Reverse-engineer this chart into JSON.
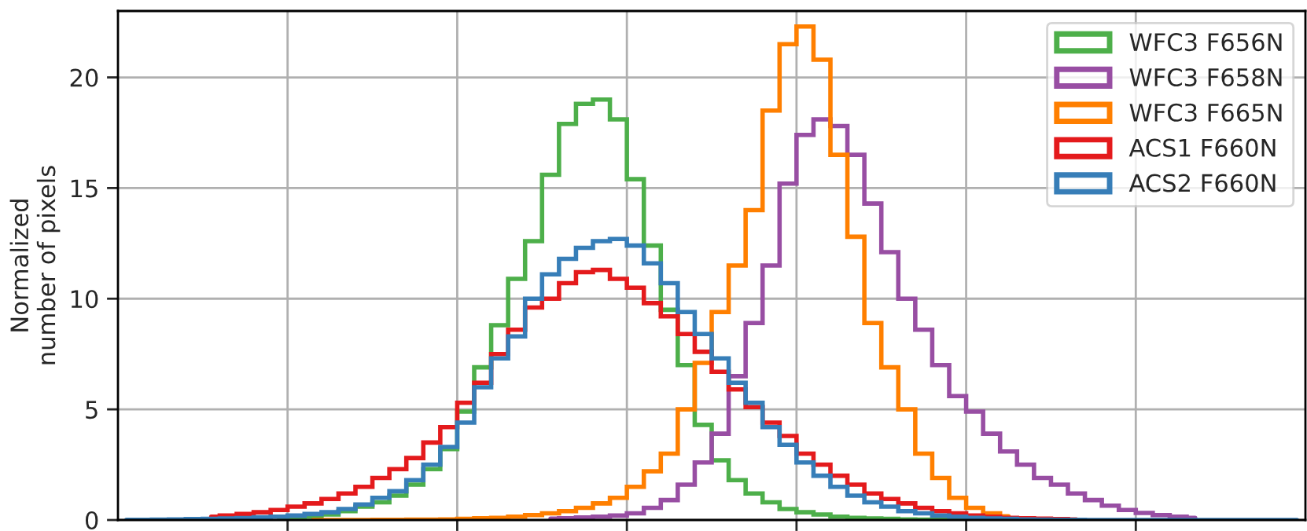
{
  "chart_data": {
    "type": "step",
    "ylabel": "Normalized\nnumber of pixels",
    "categories": [
      null,
      null,
      null,
      null,
      null,
      null,
      null,
      null,
      null,
      null,
      null,
      null,
      null,
      null,
      null,
      null,
      null,
      null,
      null,
      null,
      null,
      null,
      null,
      null,
      null,
      null,
      null,
      null,
      null,
      null,
      null,
      null,
      null,
      null,
      null,
      null,
      null,
      null,
      null,
      null,
      null,
      null,
      null,
      null,
      null,
      null,
      null,
      null,
      null,
      null,
      null,
      null,
      null,
      null,
      null,
      null,
      null,
      null,
      null,
      null,
      null,
      null,
      null,
      null,
      null,
      null,
      null,
      null,
      null,
      null
    ],
    "series": [
      {
        "name": "WFC3 F656N",
        "color": "#4daf4a",
        "values": [
          null,
          null,
          null,
          null,
          null,
          null,
          null,
          null,
          null,
          0.05,
          0.1,
          0.15,
          0.25,
          0.4,
          0.6,
          0.8,
          1.1,
          1.6,
          2.3,
          3.2,
          4.9,
          6.9,
          8.8,
          10.9,
          12.6,
          15.6,
          17.9,
          18.8,
          19.0,
          18.1,
          15.4,
          12.4,
          9.5,
          7.0,
          4.3,
          2.7,
          1.8,
          1.2,
          0.8,
          0.5,
          0.35,
          0.25,
          0.15,
          0.1,
          0.07,
          0.05,
          0.03,
          0.02,
          0.01,
          0.01,
          0,
          null,
          null,
          null,
          null,
          null,
          null,
          null,
          null,
          null,
          null,
          null,
          null,
          null,
          null,
          null,
          null,
          null,
          null,
          null
        ]
      },
      {
        "name": "WFC3 F658N",
        "color": "#984ea3",
        "values": [
          null,
          null,
          null,
          null,
          null,
          null,
          null,
          null,
          null,
          null,
          null,
          null,
          null,
          null,
          null,
          null,
          null,
          null,
          null,
          null,
          null,
          null,
          null,
          null,
          null,
          0.06,
          0.08,
          0.11,
          0.15,
          0.2,
          0.3,
          0.55,
          0.9,
          1.6,
          2.6,
          3.9,
          6.5,
          8.9,
          11.5,
          15.2,
          17.4,
          18.1,
          17.8,
          16.5,
          14.3,
          12.1,
          10.0,
          8.6,
          7.0,
          5.6,
          4.9,
          3.9,
          3.1,
          2.5,
          1.9,
          1.6,
          1.2,
          0.9,
          0.65,
          0.45,
          0.32,
          0.22,
          0.15,
          0.1,
          null,
          null,
          null,
          null,
          null,
          null
        ]
      },
      {
        "name": "WFC3 F665N",
        "color": "#ff7f00",
        "values": [
          null,
          null,
          null,
          null,
          null,
          null,
          null,
          null,
          null,
          null,
          null,
          0,
          0,
          0,
          0,
          0.01,
          0.01,
          0.02,
          0.02,
          0.03,
          0.05,
          0.08,
          0.1,
          0.15,
          0.22,
          0.3,
          0.4,
          0.55,
          0.75,
          1.0,
          1.5,
          2.2,
          3.0,
          5.0,
          7.1,
          9.4,
          11.5,
          14.0,
          18.5,
          21.5,
          22.3,
          20.8,
          16.5,
          12.8,
          8.9,
          6.9,
          5.0,
          3.0,
          1.9,
          1.0,
          0.55,
          0.3,
          0.17,
          null,
          null,
          null,
          null,
          null,
          null,
          null,
          null,
          null,
          null,
          null,
          null,
          null,
          null,
          null,
          null,
          null
        ]
      },
      {
        "name": "ACS1 F660N",
        "color": "#e41a1c",
        "values": [
          null,
          null,
          null,
          null,
          null,
          0.15,
          0.2,
          0.27,
          0.35,
          0.45,
          0.6,
          0.75,
          0.95,
          1.2,
          1.5,
          1.9,
          2.3,
          2.8,
          3.5,
          4.2,
          5.3,
          6.2,
          7.5,
          8.6,
          9.6,
          10.0,
          10.7,
          11.2,
          11.3,
          10.9,
          10.5,
          9.8,
          9.2,
          8.4,
          7.6,
          6.7,
          5.9,
          5.1,
          4.4,
          3.8,
          3.0,
          2.5,
          2.0,
          1.6,
          1.2,
          0.95,
          0.75,
          0.55,
          0.4,
          0.3,
          0.2,
          0.15,
          0.1,
          0.08,
          0.06,
          0.04,
          0.03,
          null,
          null,
          null,
          null,
          null,
          null,
          null,
          null,
          null,
          null,
          null,
          null,
          null
        ]
      },
      {
        "name": "ACS2 F660N",
        "color": "#377eb8",
        "values": [
          0.01,
          0.01,
          0.02,
          0.03,
          0.04,
          0.05,
          0.07,
          0.09,
          0.12,
          0.15,
          0.2,
          0.27,
          0.35,
          0.5,
          0.7,
          1.0,
          1.3,
          1.8,
          2.5,
          3.3,
          4.4,
          6.0,
          7.3,
          8.3,
          10.0,
          11.1,
          11.8,
          12.3,
          12.6,
          12.7,
          12.4,
          11.6,
          10.7,
          9.4,
          8.4,
          7.3,
          6.2,
          5.3,
          4.2,
          3.4,
          2.6,
          2.0,
          1.5,
          1.1,
          0.8,
          0.6,
          0.4,
          0.3,
          0.2,
          0.15,
          0.1,
          0.07,
          0.05,
          0.03,
          0.02,
          0.01,
          0.01,
          0,
          0,
          0,
          0,
          0,
          0,
          0,
          0,
          0,
          0,
          0,
          0,
          0
        ]
      }
    ],
    "ylim": [
      0,
      23
    ],
    "yticks": [
      0,
      5,
      10,
      15,
      20
    ],
    "grid": true,
    "legend": "top right",
    "line_style": "solid"
  }
}
